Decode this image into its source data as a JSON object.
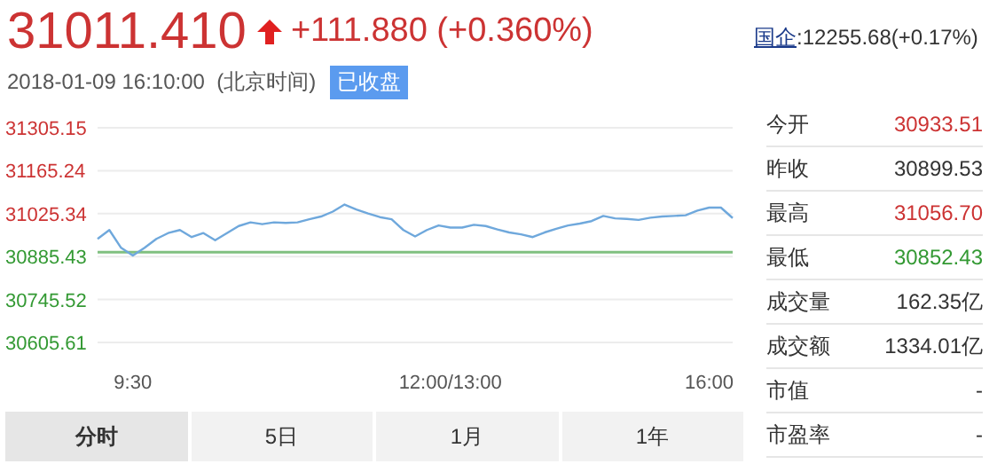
{
  "chart_data": {
    "type": "line",
    "title": "31011.410",
    "subtitle": "2018-01-09 16:10:00  (北京时间)",
    "annotations": [
      "+111.880 (+0.360%)",
      "已收盘",
      "国企:12255.68(+0.17%)",
      "今开",
      "30933.51",
      "昨收",
      "30899.53",
      "最高",
      "31056.70",
      "最低",
      "30852.43",
      "成交量",
      "162.35亿",
      "成交额",
      "1334.01亿",
      "市值",
      "-",
      "市盈率",
      "-",
      "分时",
      "5日",
      "1月",
      "1年"
    ],
    "categories": [
      null,
      null,
      null,
      "9:30",
      null,
      null,
      null,
      null,
      null,
      null,
      null,
      null,
      null,
      null,
      null,
      null,
      null,
      null,
      null,
      null,
      null,
      null,
      null,
      null,
      null,
      null,
      null,
      null,
      null,
      null,
      "12:00/13:00",
      null,
      null,
      null,
      null,
      null,
      null,
      null,
      null,
      null,
      null,
      null,
      null,
      null,
      null,
      null,
      null,
      null,
      null,
      null,
      null,
      null,
      "16:00",
      null,
      null
    ],
    "values": [
      30943,
      30972,
      30914,
      30889,
      30914,
      30943,
      30962,
      30972,
      30949,
      30962,
      30939,
      30962,
      30985,
      30997,
      30991,
      30997,
      30995,
      30997,
      31007,
      31016,
      31032,
      31055,
      31039,
      31026,
      31014,
      31007,
      30972,
      30951,
      30972,
      30987,
      30980,
      30980,
      30989,
      30985,
      30974,
      30964,
      30958,
      30949,
      30964,
      30976,
      30987,
      30993,
      31001,
      31018,
      31010,
      31008,
      31005,
      31012,
      31016,
      31018,
      31020,
      31035,
      31045,
      31045,
      31011
    ],
    "color": "#6fa8dc",
    "marker": "none",
    "grid": "y",
    "ylim": [
      30605.61,
      31305.15
    ],
    "yticks": [
      30605.61,
      30745.52,
      30885.43,
      31025.34,
      31165.24,
      31305.15
    ],
    "ref_lines": [
      {
        "axis": "y",
        "value": 30899.53,
        "label": null,
        "color": "#80c080"
      }
    ]
  }
}
